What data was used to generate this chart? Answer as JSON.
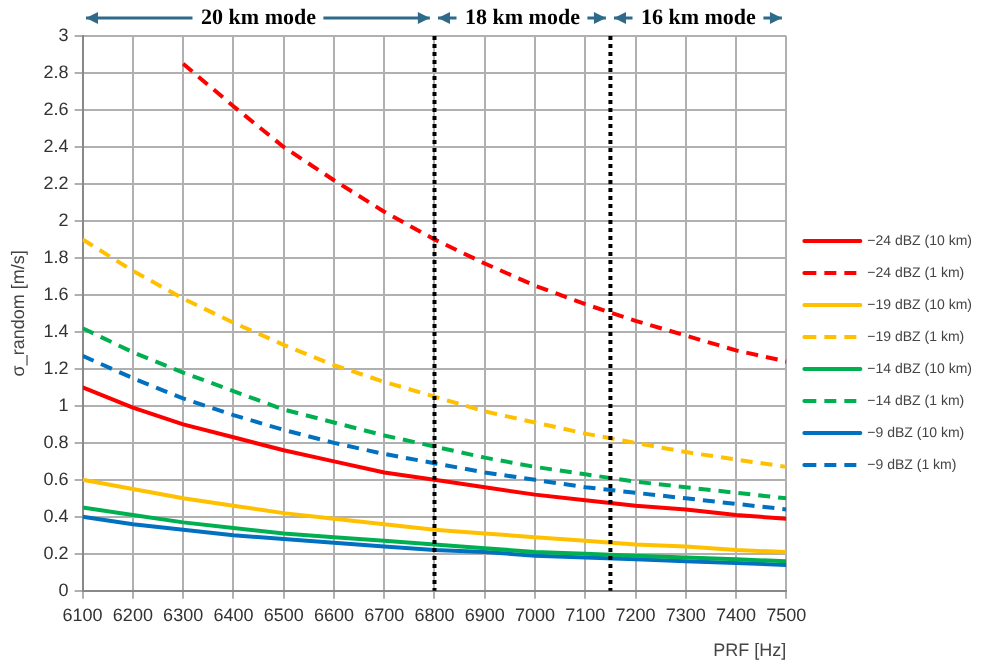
{
  "chart_data": {
    "type": "line",
    "xlabel": "PRF [Hz]",
    "ylabel": "σ_random [m/s]",
    "x": [
      6100,
      6200,
      6300,
      6400,
      6500,
      6600,
      6700,
      6800,
      6900,
      7000,
      7100,
      7200,
      7300,
      7400,
      7500
    ],
    "xlim": [
      6100,
      7500
    ],
    "xticks": [
      6100,
      6200,
      6300,
      6400,
      6500,
      6600,
      6700,
      6800,
      6900,
      7000,
      7100,
      7200,
      7300,
      7400,
      7500
    ],
    "ylim": [
      0,
      3
    ],
    "yticks": [
      0,
      0.2,
      0.4,
      0.6,
      0.8,
      1,
      1.2,
      1.4,
      1.6,
      1.8,
      2,
      2.2,
      2.4,
      2.6,
      2.8,
      3
    ],
    "grid": true,
    "legend": "right",
    "marker": "none",
    "series": [
      {
        "name": "−24 dBZ (10 km)",
        "color": "#ff0000",
        "line_style": "solid",
        "values": [
          1.1,
          0.99,
          0.9,
          0.83,
          0.76,
          0.7,
          0.64,
          0.6,
          0.56,
          0.52,
          0.49,
          0.46,
          0.44,
          0.41,
          0.39
        ]
      },
      {
        "name": "−24 dBZ (1 km)",
        "color": "#ff0000",
        "line_style": "dashed",
        "values": [
          null,
          null,
          2.85,
          2.62,
          2.4,
          2.22,
          2.05,
          1.9,
          1.77,
          1.65,
          1.55,
          1.46,
          1.38,
          1.3,
          1.24
        ]
      },
      {
        "name": "−19 dBZ (10 km)",
        "color": "#ffc000",
        "line_style": "solid",
        "values": [
          0.6,
          0.55,
          0.5,
          0.46,
          0.42,
          0.39,
          0.36,
          0.33,
          0.31,
          0.29,
          0.27,
          0.25,
          0.24,
          0.22,
          0.21
        ]
      },
      {
        "name": "−19 dBZ (1 km)",
        "color": "#ffc000",
        "line_style": "dashed",
        "values": [
          1.9,
          1.73,
          1.58,
          1.45,
          1.33,
          1.22,
          1.13,
          1.05,
          0.97,
          0.91,
          0.85,
          0.8,
          0.75,
          0.71,
          0.67
        ]
      },
      {
        "name": "−14 dBZ (10 km)",
        "color": "#00b050",
        "line_style": "solid",
        "values": [
          0.45,
          0.41,
          0.37,
          0.34,
          0.31,
          0.29,
          0.27,
          0.25,
          0.23,
          0.21,
          0.2,
          0.19,
          0.18,
          0.17,
          0.16
        ]
      },
      {
        "name": "−14 dBZ (1 km)",
        "color": "#00b050",
        "line_style": "dashed",
        "values": [
          1.42,
          1.29,
          1.18,
          1.08,
          0.98,
          0.91,
          0.84,
          0.78,
          0.72,
          0.67,
          0.63,
          0.59,
          0.56,
          0.53,
          0.5
        ]
      },
      {
        "name": "−9 dBZ (10 km)",
        "color": "#0070c0",
        "line_style": "solid",
        "values": [
          0.4,
          0.36,
          0.33,
          0.3,
          0.28,
          0.26,
          0.24,
          0.22,
          0.21,
          0.19,
          0.18,
          0.17,
          0.16,
          0.15,
          0.14
        ]
      },
      {
        "name": "−9 dBZ (1 km)",
        "color": "#0070c0",
        "line_style": "dashed",
        "values": [
          1.27,
          1.15,
          1.04,
          0.95,
          0.87,
          0.8,
          0.74,
          0.69,
          0.64,
          0.6,
          0.56,
          0.53,
          0.5,
          0.47,
          0.44
        ]
      }
    ],
    "ref_lines": [
      {
        "axis": "x",
        "value": 6800,
        "color": "#000000",
        "line_style": "dotted"
      },
      {
        "axis": "x",
        "value": 7150,
        "color": "#000000",
        "line_style": "dotted"
      }
    ],
    "annotations": [
      "20 km mode",
      "18 km mode",
      "16 km mode"
    ]
  }
}
